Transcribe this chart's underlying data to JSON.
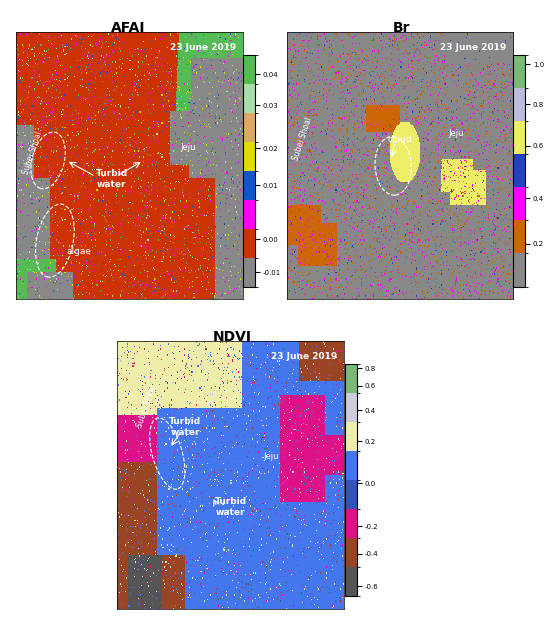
{
  "title_afai": "AFAI",
  "title_br": "Br",
  "title_ndvi": "NDVI",
  "date_text": "23 June 2019",
  "afai_colorbar_ticks": [
    -0.01,
    0.0,
    0.01,
    0.02,
    0.03,
    0.04
  ],
  "afai_colorbar_labels": [
    "-0.01",
    "0.00",
    "0.01",
    "0.02",
    "0.03",
    "0.04"
  ],
  "br_colorbar_ticks": [
    0.2,
    0.4,
    0.6,
    0.8,
    1.0
  ],
  "br_colorbar_labels": [
    "0.2",
    "0.4",
    "0.6",
    "0.8",
    "1.0"
  ],
  "ndvi_colorbar_ticks": [
    -0.6,
    -0.4,
    -0.2,
    0.0,
    0.2,
    0.4,
    0.6,
    0.8
  ],
  "ndvi_colorbar_labels": [
    "-0.6",
    "-0.4",
    "-0.2",
    "0.0",
    "0.2",
    "0.4",
    "0.6",
    "0.8"
  ],
  "afai_colors": [
    "#888888",
    "#cc3300",
    "#ff00ff",
    "#1155cc",
    "#dddd00",
    "#ddaa66",
    "#aaddaa",
    "#55bb55"
  ],
  "afai_bounds": [
    -0.015,
    -0.005,
    0.003,
    0.007,
    0.013,
    0.022,
    0.028,
    0.036,
    0.048
  ],
  "br_colors": [
    "#888888",
    "#cc6600",
    "#ff00ff",
    "#2244bb",
    "#eeee66",
    "#bbbbdd",
    "#77bb77"
  ],
  "br_bounds": [
    0.0,
    0.15,
    0.32,
    0.44,
    0.56,
    0.72,
    0.88,
    1.05
  ],
  "ndvi_colors": [
    "#555555",
    "#994422",
    "#dd1188",
    "#3355bb",
    "#4477ee",
    "#eeeeaa",
    "#ccccdd",
    "#77bb77"
  ],
  "ndvi_bounds": [
    -0.65,
    -0.5,
    -0.28,
    -0.08,
    0.01,
    0.14,
    0.32,
    0.52,
    0.85
  ]
}
